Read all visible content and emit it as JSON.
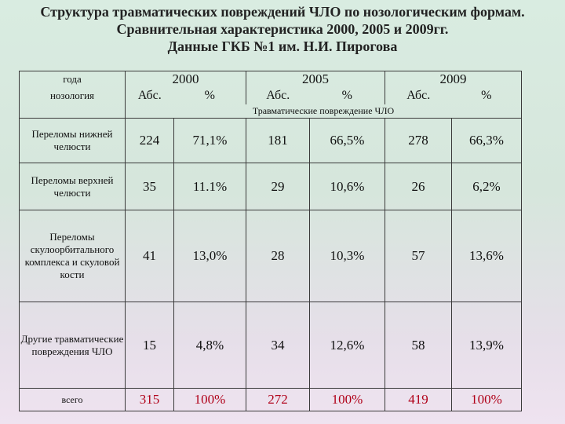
{
  "title": {
    "line1": "Структура травматических повреждений ЧЛО по нозологическим формам.",
    "line2": "Сравнительная характеристика 2000, 2005 и 2009гг.",
    "line3": "Данные ГКБ №1 им. Н.И. Пирогова"
  },
  "header": {
    "year_label": "года",
    "nosology_label": "нозология",
    "years": [
      "2000",
      "2005",
      "2009"
    ],
    "abs": "Абс.",
    "pct": "%",
    "section": "Травматические повреждение ЧЛО"
  },
  "rows": [
    {
      "label": "Переломы нижней челюсти",
      "a2000": "224",
      "p2000": "71,1%",
      "a2005": "181",
      "p2005": "66,5%",
      "a2009": "278",
      "p2009": "66,3%"
    },
    {
      "label": "Переломы верхней челюсти",
      "a2000": "35",
      "p2000": "11.1%",
      "a2005": "29",
      "p2005": "10,6%",
      "a2009": "26",
      "p2009": "6,2%"
    },
    {
      "label": "Переломы скулоорбитального комплекса и скуловой кости",
      "a2000": "41",
      "p2000": "13,0%",
      "a2005": "28",
      "p2005": "10,3%",
      "a2009": "57",
      "p2009": "13,6%"
    },
    {
      "label": "Другие травматические повреждения ЧЛО",
      "a2000": "15",
      "p2000": "4,8%",
      "a2005": "34",
      "p2005": "12,6%",
      "a2009": "58",
      "p2009": "13,9%"
    }
  ],
  "total": {
    "label": "всего",
    "a2000": "315",
    "p2000": "100%",
    "a2005": "272",
    "p2005": "100%",
    "a2009": "419",
    "p2009": "100%"
  },
  "colors": {
    "total_text": "#b00018",
    "border": "#3a3a3a"
  }
}
